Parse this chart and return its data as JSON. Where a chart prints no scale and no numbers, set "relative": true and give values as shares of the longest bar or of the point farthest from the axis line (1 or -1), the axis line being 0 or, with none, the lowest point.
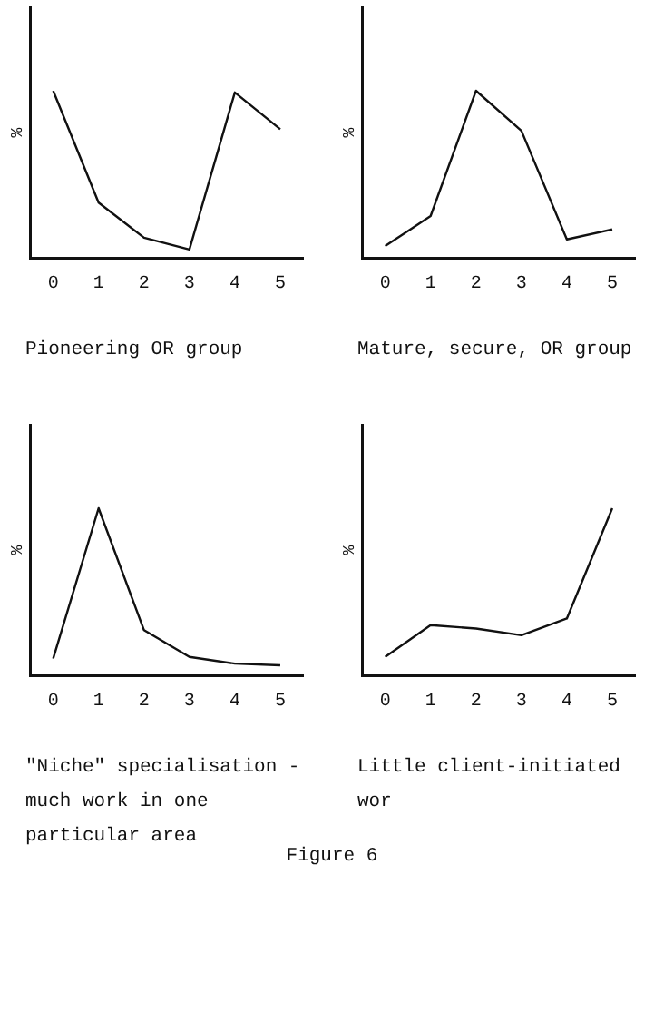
{
  "chart_data": [
    {
      "type": "line",
      "title": "Pioneering OR group",
      "ylabel": "%",
      "relative": true,
      "categories": [
        "0",
        "1",
        "2",
        "3",
        "4",
        "5"
      ],
      "series": [
        {
          "color": "#111111",
          "values": [
            1,
            0.33,
            0.12,
            0.05,
            0.99,
            0.77
          ]
        }
      ],
      "grid": false,
      "legend": false,
      "marker": "none"
    },
    {
      "type": "line",
      "title": "Mature, secure, OR group",
      "ylabel": "%",
      "relative": true,
      "categories": [
        "0",
        "1",
        "2",
        "3",
        "4",
        "5"
      ],
      "series": [
        {
          "color": "#111111",
          "values": [
            0.07,
            0.25,
            1,
            0.76,
            0.11,
            0.17
          ]
        }
      ],
      "grid": false,
      "legend": false,
      "marker": "none"
    },
    {
      "type": "line",
      "title": "\"Niche\" specialisation - much work in one particular area",
      "ylabel": "%",
      "relative": true,
      "categories": [
        "0",
        "1",
        "2",
        "3",
        "4",
        "5"
      ],
      "series": [
        {
          "color": "#111111",
          "values": [
            0.1,
            1,
            0.27,
            0.11,
            0.07,
            0.06
          ]
        }
      ],
      "grid": false,
      "legend": false,
      "marker": "none"
    },
    {
      "type": "line",
      "title": "Little client-initiated wor",
      "ylabel": "%",
      "relative": true,
      "categories": [
        "0",
        "1",
        "2",
        "3",
        "4",
        "5"
      ],
      "series": [
        {
          "color": "#111111",
          "values": [
            0.11,
            0.3,
            0.28,
            0.24,
            0.34,
            1
          ]
        }
      ],
      "grid": false,
      "legend": false,
      "marker": "none",
      "annotations": [
        "Figure 6"
      ]
    }
  ]
}
